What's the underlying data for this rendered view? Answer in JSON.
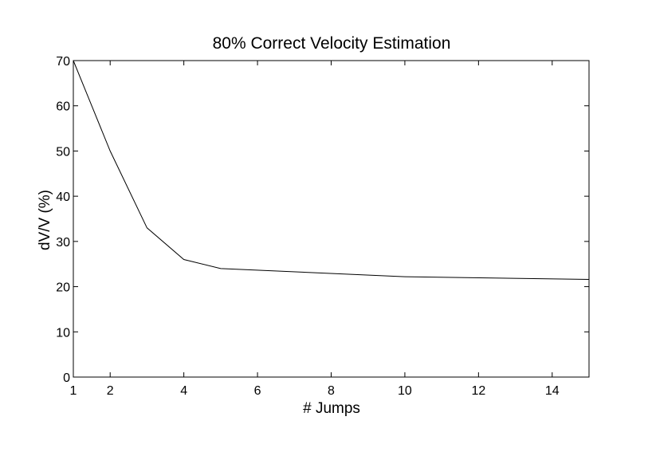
{
  "chart_data": {
    "type": "line",
    "title": "80% Correct Velocity Estimation",
    "xlabel": "# Jumps",
    "ylabel": "dV/V (%)",
    "xlim": [
      1,
      15
    ],
    "ylim": [
      0,
      70
    ],
    "xticks": [
      1,
      2,
      4,
      6,
      8,
      10,
      12,
      14
    ],
    "yticks": [
      0,
      10,
      20,
      30,
      40,
      50,
      60,
      70
    ],
    "grid": false,
    "series": [
      {
        "x": [
          1,
          2,
          3,
          4,
          5,
          10,
          15
        ],
        "y": [
          70,
          50,
          33,
          26,
          24,
          22.2,
          21.6
        ],
        "color": "#000000"
      }
    ]
  }
}
